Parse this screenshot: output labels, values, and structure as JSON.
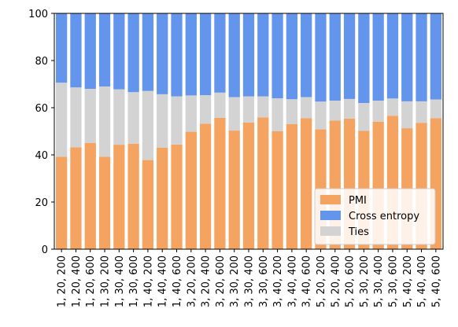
{
  "chart_data": {
    "type": "bar",
    "stacked": true,
    "categories": [
      "1, 20, 200",
      "1, 20, 400",
      "1, 20, 600",
      "1, 30, 200",
      "1, 30, 400",
      "1, 30, 600",
      "1, 40, 200",
      "1, 40, 400",
      "1, 40, 600",
      "3, 20, 200",
      "3, 20, 400",
      "3, 20, 600",
      "3, 30, 200",
      "3, 30, 400",
      "3, 30, 600",
      "3, 40, 200",
      "3, 40, 400",
      "3, 40, 600",
      "5, 20, 200",
      "5, 20, 400",
      "5, 20, 600",
      "5, 30, 200",
      "5, 30, 400",
      "5, 30, 600",
      "5, 40, 200",
      "5, 40, 400",
      "5, 40, 600"
    ],
    "series": [
      {
        "name": "PMI",
        "color": "#f4a460",
        "values": [
          39.2,
          43.2,
          45.0,
          39.2,
          44.3,
          44.7,
          37.8,
          43.0,
          44.4,
          49.8,
          53.2,
          55.7,
          50.3,
          53.7,
          55.9,
          50.0,
          53.0,
          55.5,
          50.8,
          54.5,
          55.4,
          50.2,
          54.1,
          56.6,
          51.3,
          53.6,
          55.5
        ]
      },
      {
        "name": "Cross entropy",
        "color": "#6495ed",
        "values": [
          29.4,
          31.4,
          32.0,
          31.0,
          32.2,
          33.4,
          32.9,
          34.3,
          35.2,
          34.8,
          34.7,
          33.6,
          35.5,
          35.2,
          35.2,
          36.0,
          36.4,
          35.5,
          37.4,
          37.0,
          36.3,
          38.0,
          37.0,
          36.1,
          37.3,
          37.3,
          36.5
        ]
      },
      {
        "name": "Ties",
        "color": "#d3d3d3",
        "values": [
          31.4,
          25.4,
          23.0,
          29.8,
          23.5,
          21.9,
          29.3,
          22.7,
          20.4,
          15.4,
          12.1,
          10.7,
          14.2,
          11.1,
          8.9,
          14.0,
          10.6,
          9.0,
          11.8,
          8.5,
          8.3,
          11.8,
          8.9,
          7.3,
          11.4,
          9.1,
          8.0
        ]
      }
    ],
    "stack_order": [
      "PMI",
      "Ties",
      "Cross entropy"
    ],
    "yticks": [
      0,
      20,
      40,
      60,
      80,
      100
    ],
    "ylim": [
      0,
      100
    ],
    "legend": {
      "placement": "lower-right",
      "entries": [
        "PMI",
        "Cross entropy",
        "Ties"
      ]
    },
    "grid": false
  }
}
